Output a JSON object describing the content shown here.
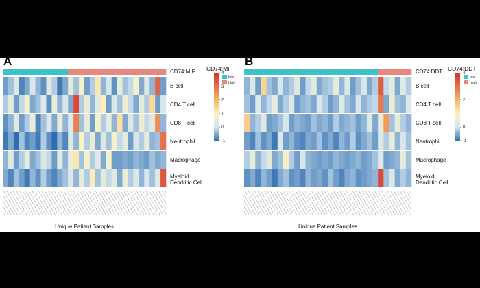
{
  "chart_data": [
    {
      "type": "heatmap",
      "panel": "A",
      "annotation_title": "CD74:MIF",
      "legend_title": "CD74:MIF",
      "xlabel": "Unique Patient Samples",
      "rows": [
        "B cell",
        "CD4 T cell",
        "CD8 T cell",
        "Neutrophil",
        "Macrophage",
        "Myeloid Dendritic Cell"
      ],
      "groups": [
        {
          "name": "low",
          "color": "#3fc1c9"
        },
        {
          "name": "high",
          "color": "#e8877d"
        }
      ],
      "annotation": [
        "low",
        "low",
        "low",
        "low",
        "low",
        "low",
        "low",
        "low",
        "low",
        "low",
        "low",
        "low",
        "high",
        "high",
        "high",
        "high",
        "high",
        "high",
        "high",
        "high",
        "high",
        "high",
        "high",
        "high",
        "high",
        "high",
        "high",
        "high",
        "high",
        "high"
      ],
      "zlim": [
        -1,
        4
      ],
      "zticks": [
        -1,
        0,
        1,
        2,
        3,
        4
      ],
      "colorscale": [
        [
          -1,
          "#2f6db0"
        ],
        [
          0,
          "#d3e5f0"
        ],
        [
          1,
          "#fbf3c0"
        ],
        [
          2,
          "#f7b46a"
        ],
        [
          4,
          "#d3302a"
        ]
      ],
      "z": [
        [
          -0.6,
          -0.3,
          0.2,
          -0.8,
          -0.5,
          0.1,
          -0.4,
          -0.7,
          0.3,
          -0.2,
          -0.9,
          -0.5,
          0.4,
          -0.3,
          0.8,
          -0.6,
          -0.2,
          1.2,
          -0.4,
          0.1,
          -0.7,
          0.5,
          -0.3,
          -0.1,
          0.9,
          -0.5,
          0.2,
          -0.4,
          3.2,
          -0.6
        ],
        [
          -0.2,
          0.4,
          -0.6,
          -0.1,
          0.8,
          -0.5,
          -0.3,
          0.2,
          -0.7,
          0.5,
          -0.4,
          0.1,
          -0.5,
          3.6,
          -0.2,
          0.6,
          -0.4,
          0.3,
          1.1,
          -0.6,
          0.2,
          -0.3,
          0.7,
          -0.1,
          -0.5,
          0.4,
          -0.2,
          1.4,
          -0.6,
          0.1
        ],
        [
          -0.7,
          -0.4,
          0.3,
          -0.6,
          -0.2,
          0.5,
          -0.8,
          -0.3,
          0.1,
          -0.5,
          0.6,
          -0.4,
          0.2,
          2.8,
          -0.3,
          0.5,
          -0.6,
          0.9,
          -0.2,
          0.4,
          -0.4,
          1.3,
          -0.5,
          0.2,
          -0.3,
          0.6,
          -0.1,
          0.3,
          2.6,
          -0.4
        ],
        [
          -0.9,
          -0.5,
          -1.0,
          -0.3,
          -0.8,
          -0.6,
          -0.9,
          -0.2,
          -0.7,
          -1.0,
          -0.4,
          -0.8,
          0.3,
          -0.4,
          1.0,
          -0.2,
          0.6,
          -0.5,
          0.2,
          -0.3,
          0.8,
          -0.1,
          0.4,
          -0.6,
          0.1,
          -0.2,
          0.5,
          -0.4,
          -0.3,
          3.0
        ],
        [
          -0.4,
          0.3,
          -0.6,
          -0.2,
          0.5,
          -0.5,
          -0.3,
          0.2,
          -0.1,
          -0.6,
          0.4,
          -0.4,
          0.6,
          1.2,
          -0.3,
          0.8,
          -0.2,
          0.3,
          -0.5,
          0.9,
          -0.6,
          -0.6,
          -0.5,
          -0.6,
          -0.4,
          -0.5,
          -0.6,
          -0.3,
          -0.5,
          -0.4
        ],
        [
          -0.5,
          -0.8,
          -0.3,
          -0.6,
          -0.9,
          -0.4,
          -0.7,
          -0.2,
          -0.6,
          -0.8,
          -0.5,
          -0.3,
          0.2,
          -0.4,
          0.5,
          -0.2,
          1.1,
          -0.3,
          0.4,
          -0.1,
          0.3,
          -0.5,
          0.6,
          -0.2,
          0.2,
          -0.4,
          0.1,
          -0.3,
          0.3,
          3.4
        ]
      ]
    },
    {
      "type": "heatmap",
      "panel": "B",
      "annotation_title": "CD74:DDT",
      "legend_title": "CD74:DDT",
      "xlabel": "Unique Patient Samples",
      "rows": [
        "B cell",
        "CD4 T cell",
        "CD8 T cell",
        "Neutrophil",
        "Macrophage",
        "Myeloid Dendritic Cell"
      ],
      "groups": [
        {
          "name": "low",
          "color": "#3fc1c9"
        },
        {
          "name": "high",
          "color": "#e8877d"
        }
      ],
      "annotation": [
        "low",
        "low",
        "low",
        "low",
        "low",
        "low",
        "low",
        "low",
        "low",
        "low",
        "low",
        "low",
        "low",
        "low",
        "low",
        "low",
        "low",
        "low",
        "low",
        "low",
        "low",
        "low",
        "low",
        "low",
        "high",
        "high",
        "high",
        "high",
        "high",
        "high"
      ],
      "zlim": [
        -1,
        4
      ],
      "zticks": [
        -1,
        0,
        2,
        4
      ],
      "colorscale": [
        [
          -1,
          "#2f6db0"
        ],
        [
          0,
          "#d3e5f0"
        ],
        [
          1,
          "#fbf3c0"
        ],
        [
          2,
          "#f7b46a"
        ],
        [
          4,
          "#d3302a"
        ]
      ],
      "z": [
        [
          -0.4,
          0.2,
          -0.6,
          1.5,
          -0.3,
          -0.5,
          0.1,
          -0.4,
          -0.2,
          0.3,
          -0.6,
          -0.1,
          0.4,
          -0.5,
          -0.3,
          -0.2,
          0.5,
          -0.4,
          0.2,
          -0.6,
          -0.3,
          0.1,
          -0.5,
          -0.2,
          3.3,
          -0.1,
          0.4,
          -0.5,
          0.3,
          -0.2
        ],
        [
          -0.3,
          -0.6,
          0.2,
          -0.4,
          -0.1,
          0.5,
          -0.5,
          -0.2,
          0.3,
          -0.6,
          -0.4,
          -0.3,
          -0.5,
          0.1,
          -0.2,
          -0.6,
          -0.4,
          0.2,
          -0.3,
          -0.5,
          0.1,
          -0.4,
          -0.2,
          -0.1,
          2.9,
          -0.5,
          0.6,
          -0.3,
          -0.4,
          0.2
        ],
        [
          1.6,
          -0.4,
          -0.2,
          0.3,
          -0.6,
          -0.5,
          -0.3,
          0.1,
          -0.6,
          -0.4,
          -0.5,
          -0.6,
          -0.3,
          -0.5,
          -0.4,
          -0.6,
          -0.2,
          -0.5,
          -0.4,
          -0.3,
          -0.6,
          -0.4,
          0.2,
          -0.5,
          0.4,
          2.4,
          -0.3,
          0.5,
          -0.2,
          -0.4
        ],
        [
          -0.6,
          -0.8,
          -0.3,
          -0.7,
          -0.5,
          -0.9,
          0.2,
          -0.6,
          -0.4,
          -0.7,
          -0.8,
          -0.5,
          -0.6,
          -0.3,
          -0.7,
          -0.5,
          -0.8,
          -0.4,
          -0.6,
          -0.2,
          -0.7,
          -0.5,
          -0.3,
          -0.6,
          0.3,
          -0.2,
          0.5,
          -0.4,
          0.1,
          -0.3
        ],
        [
          -0.2,
          0.5,
          -0.4,
          -0.1,
          0.3,
          -0.5,
          -0.3,
          0.8,
          -0.2,
          -0.6,
          0.1,
          -0.4,
          -0.5,
          -0.6,
          -0.5,
          -0.6,
          -0.4,
          -0.5,
          -0.6,
          -0.5,
          -0.4,
          -0.6,
          -0.5,
          -0.3,
          0.2,
          -0.6,
          -0.5,
          -0.4,
          0.4,
          -0.3
        ],
        [
          -0.7,
          -0.5,
          -0.8,
          -0.4,
          -0.6,
          -0.9,
          -0.5,
          -0.3,
          -0.7,
          -0.6,
          -0.8,
          -0.4,
          -0.6,
          -0.5,
          -0.7,
          -0.3,
          -0.6,
          -0.8,
          -0.5,
          -0.4,
          -0.7,
          -0.6,
          -0.5,
          -0.4,
          3.6,
          -0.3,
          0.2,
          -0.5,
          -0.2,
          -0.4
        ]
      ]
    }
  ]
}
